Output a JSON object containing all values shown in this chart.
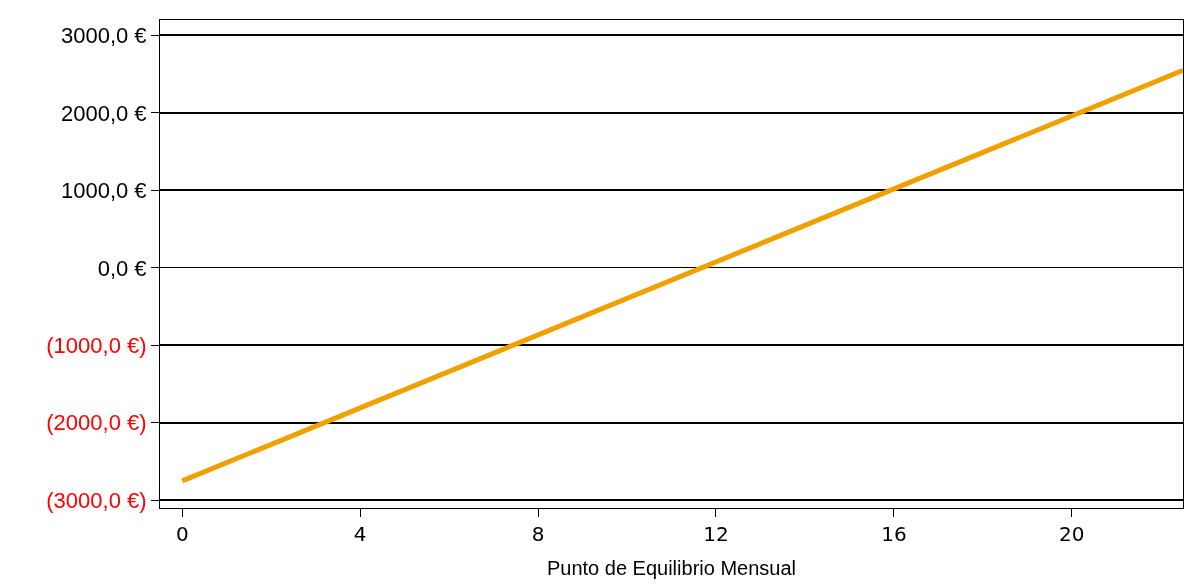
{
  "chart_data": {
    "type": "line",
    "xlabel": "Punto de Equilibrio Mensual",
    "x": [
      0,
      22.5
    ],
    "series": [
      {
        "color": "#f0a000",
        "values": [
          -2750,
          2550
        ]
      }
    ],
    "xlim": [
      -0.5,
      22.5
    ],
    "xticks": [
      0,
      4,
      8,
      12,
      16,
      20
    ],
    "ylim": [
      -3100,
      3200
    ],
    "yticks": [
      {
        "value": -3000,
        "label": "(3000,0 €)"
      },
      {
        "value": -2000,
        "label": "(2000,0 €)"
      },
      {
        "value": -1000,
        "label": "(1000,0 €)"
      },
      {
        "value": 0,
        "label": "0,0 €"
      },
      {
        "value": 1000,
        "label": "1000,0 €"
      },
      {
        "value": 2000,
        "label": "2000,0 €"
      },
      {
        "value": 3000,
        "label": "3000,0 €"
      }
    ],
    "grid": "y",
    "marker": "none",
    "line_style": "solid"
  }
}
